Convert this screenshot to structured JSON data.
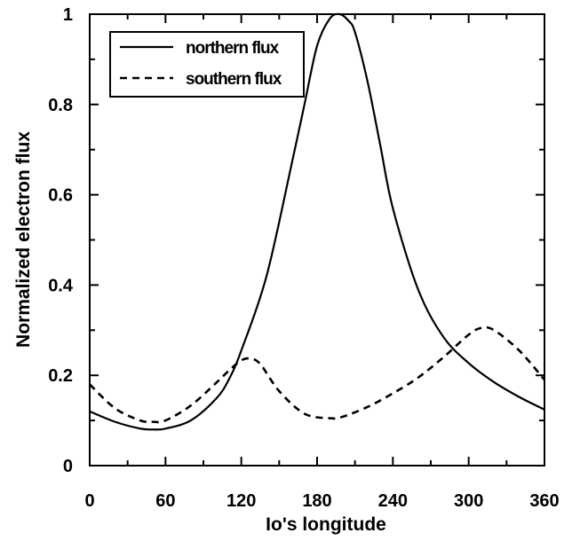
{
  "chart_data": {
    "type": "line",
    "xlabel": "Io's longitude",
    "ylabel": "Normalized electron flux",
    "xlim": [
      0,
      360
    ],
    "ylim": [
      0,
      1
    ],
    "x_ticks": [
      "0",
      "60",
      "120",
      "180",
      "240",
      "300",
      "360"
    ],
    "y_ticks": [
      "0",
      "0.2",
      "0.4",
      "0.6",
      "0.8",
      "1"
    ],
    "legend_position": "top-left",
    "grid": false,
    "series": [
      {
        "name": "northern flux",
        "style": "solid",
        "x": [
          0,
          20,
          40,
          50,
          60,
          80,
          100,
          110,
          120,
          140,
          160,
          170,
          180,
          190,
          198,
          205,
          210,
          220,
          230,
          240,
          260,
          280,
          300,
          320,
          340,
          360
        ],
        "y": [
          0.12,
          0.097,
          0.082,
          0.08,
          0.082,
          0.1,
          0.148,
          0.19,
          0.255,
          0.42,
          0.67,
          0.8,
          0.93,
          0.99,
          1.0,
          0.985,
          0.96,
          0.85,
          0.71,
          0.57,
          0.39,
          0.285,
          0.227,
          0.185,
          0.152,
          0.124
        ]
      },
      {
        "name": "southern flux",
        "style": "dashed",
        "x": [
          0,
          20,
          40,
          50,
          60,
          80,
          100,
          110,
          120,
          127,
          135,
          150,
          170,
          190,
          200,
          220,
          240,
          260,
          280,
          300,
          310,
          320,
          340,
          360
        ],
        "y": [
          0.18,
          0.127,
          0.1,
          0.097,
          0.1,
          0.133,
          0.183,
          0.21,
          0.233,
          0.237,
          0.225,
          0.165,
          0.115,
          0.105,
          0.108,
          0.13,
          0.16,
          0.195,
          0.24,
          0.29,
          0.305,
          0.3,
          0.255,
          0.19
        ]
      }
    ]
  }
}
